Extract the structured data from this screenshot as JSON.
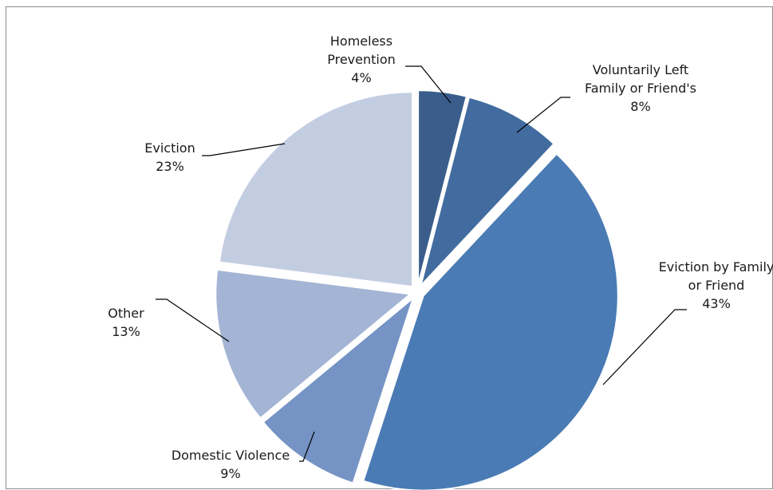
{
  "chart_data": {
    "type": "pie",
    "title": "",
    "slices": [
      {
        "label_lines": [
          "Homeless",
          "Prevention"
        ],
        "percent_label": "4%",
        "value": 4,
        "color": "#3A5D8C"
      },
      {
        "label_lines": [
          "Voluntarily Left",
          "Family or Friend's"
        ],
        "percent_label": "8%",
        "value": 8,
        "color": "#426C9F"
      },
      {
        "label_lines": [
          "Eviction by Family",
          "or Friend"
        ],
        "percent_label": "43%",
        "value": 43,
        "color": "#4A7BB4"
      },
      {
        "label_lines": [
          "Domestic Violence"
        ],
        "percent_label": "9%",
        "value": 9,
        "color": "#7593C4"
      },
      {
        "label_lines": [
          "Other"
        ],
        "percent_label": "13%",
        "value": 13,
        "color": "#A3B4D4"
      },
      {
        "label_lines": [
          "Eviction"
        ],
        "percent_label": "23%",
        "value": 23,
        "color": "#C3CDE2"
      }
    ],
    "legend": "none"
  }
}
